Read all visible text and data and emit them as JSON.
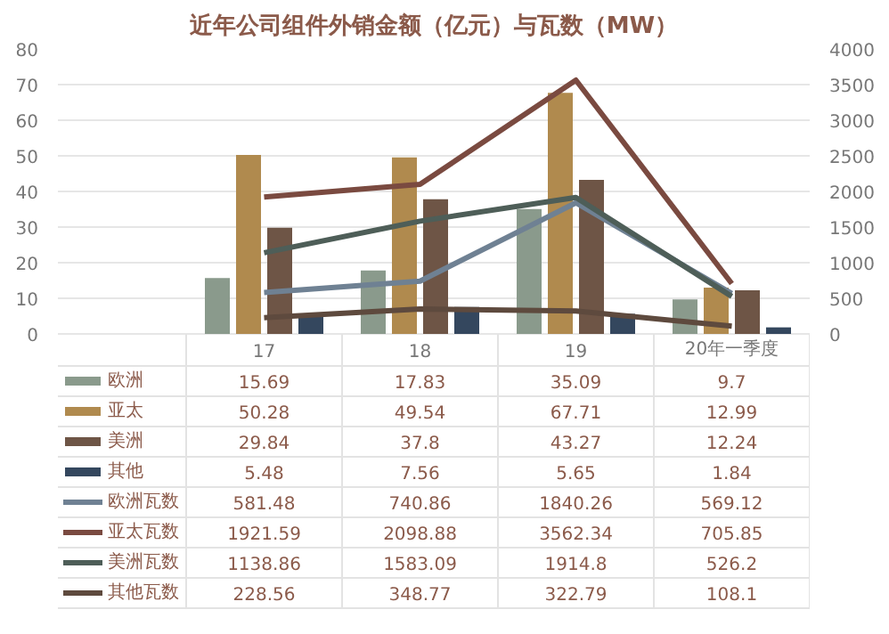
{
  "chart_data": {
    "type": "bar",
    "title": "近年公司组件外销金额（亿元）与瓦数（MW）",
    "categories": [
      "17",
      "18",
      "19",
      "20年一季度"
    ],
    "series": [
      {
        "name": "欧洲",
        "color": "#8a9a8c",
        "values": [
          15.69,
          17.83,
          35.09,
          9.7
        ]
      },
      {
        "name": "亚太",
        "color": "#b08a4e",
        "values": [
          50.28,
          49.54,
          67.71,
          12.99
        ]
      },
      {
        "name": "美洲",
        "color": "#6e5546",
        "values": [
          29.84,
          37.8,
          43.27,
          12.24
        ]
      },
      {
        "name": "其他",
        "color": "#34475e",
        "values": [
          5.48,
          7.56,
          5.65,
          1.84
        ]
      },
      {
        "name": "欧洲瓦数",
        "type": "line",
        "axis": "y2",
        "color": "#6f8193",
        "values": [
          581.48,
          740.86,
          1840.26,
          569.12
        ]
      },
      {
        "name": "亚太瓦数",
        "type": "line",
        "axis": "y2",
        "color": "#7a4a40",
        "values": [
          1921.59,
          2098.88,
          3562.34,
          705.85
        ]
      },
      {
        "name": "美洲瓦数",
        "type": "line",
        "axis": "y2",
        "color": "#4e5e58",
        "values": [
          1138.86,
          1583.09,
          1914.8,
          526.2
        ]
      },
      {
        "name": "其他瓦数",
        "type": "line",
        "axis": "y2",
        "color": "#5e4a3e",
        "values": [
          228.56,
          348.77,
          322.79,
          108.1
        ]
      }
    ],
    "ylim": [
      0,
      80
    ],
    "yticks": [
      0,
      10,
      20,
      30,
      40,
      50,
      60,
      70,
      80
    ],
    "y2lim": [
      0,
      4000
    ],
    "y2ticks": [
      0,
      500,
      1000,
      1500,
      2000,
      2500,
      3000,
      3500,
      4000
    ],
    "grid": "y",
    "legend": "bottom",
    "data_labels": true
  }
}
